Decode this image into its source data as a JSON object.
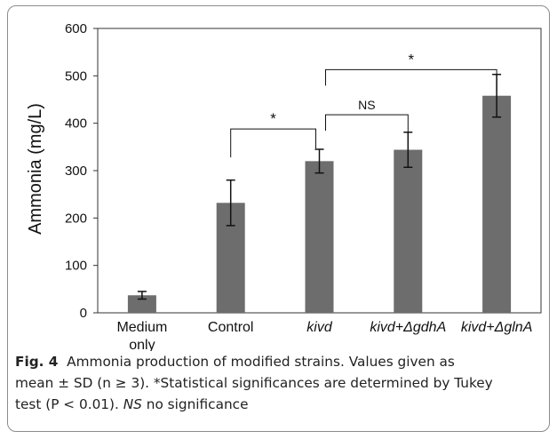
{
  "chart_data": {
    "type": "bar",
    "categories": [
      "Medium only",
      "Control",
      "kivd",
      "kivd+ΔgdhA",
      "kivd+ΔglnA"
    ],
    "category_lines": [
      [
        "Medium",
        "only"
      ],
      [
        "Control"
      ],
      [
        "kivd"
      ],
      [
        "kivd+ΔgdhA"
      ],
      [
        "kivd+ΔglnA"
      ]
    ],
    "category_italic": [
      false,
      false,
      true,
      true,
      true
    ],
    "values": [
      37,
      232,
      320,
      344,
      458
    ],
    "errors": [
      8,
      48,
      25,
      37,
      45
    ],
    "ylabel": "Ammonia (mg/L)",
    "ylim": [
      0,
      600
    ],
    "yticks": [
      0,
      100,
      200,
      300,
      400,
      500,
      600
    ],
    "bar_color": "#6d6d6d",
    "significance": [
      {
        "from": 1,
        "to": 2,
        "label": "*"
      },
      {
        "from": 2,
        "to": 3,
        "label": "NS"
      },
      {
        "from": 2,
        "to": 4,
        "label": "*"
      }
    ]
  },
  "caption": {
    "figure_label": "Fig. 4",
    "line1": "Ammonia production of modified strains. Values given as",
    "line2": "mean ± SD (n ≥ 3). *Statistical significances are determined by Tukey",
    "line3": "test (P < 0.01). ",
    "ns_abbrev": "NS",
    "line3_end": " no significance"
  }
}
